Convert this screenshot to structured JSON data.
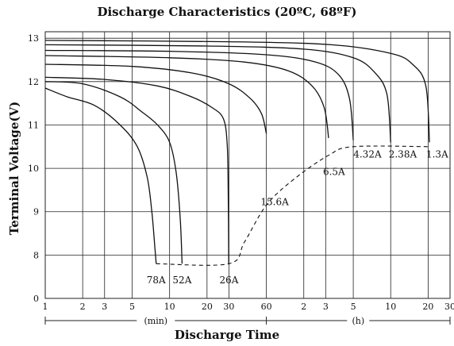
{
  "chart_data": {
    "type": "line",
    "title": "Discharge Characteristics (20ºC, 68ºF)",
    "xlabel": "Discharge Time",
    "ylabel": "Terminal Voltage(V)",
    "x_scale": "log",
    "x_unit_min": "(min)",
    "x_unit_h": "(h)",
    "x_ticks": [
      {
        "label": "1",
        "minutes": 1
      },
      {
        "label": "2",
        "minutes": 2
      },
      {
        "label": "3",
        "minutes": 3
      },
      {
        "label": "5",
        "minutes": 5
      },
      {
        "label": "10",
        "minutes": 10
      },
      {
        "label": "20",
        "minutes": 20
      },
      {
        "label": "30",
        "minutes": 30
      },
      {
        "label": "60",
        "minutes": 60
      },
      {
        "label": "2",
        "minutes": 120
      },
      {
        "label": "3",
        "minutes": 180
      },
      {
        "label": "5",
        "minutes": 300
      },
      {
        "label": "10",
        "minutes": 600
      },
      {
        "label": "20",
        "minutes": 1200
      },
      {
        "label": "30",
        "minutes": 1800
      }
    ],
    "y_ticks": [
      {
        "label": "0",
        "volts": 7
      },
      {
        "label": "8",
        "volts": 8
      },
      {
        "label": "9",
        "volts": 9
      },
      {
        "label": "10",
        "volts": 10
      },
      {
        "label": "11",
        "volts": 11
      },
      {
        "label": "12",
        "volts": 12
      },
      {
        "label": "13",
        "volts": 13
      }
    ],
    "grid": true,
    "series": [
      {
        "name": "78A",
        "points": [
          [
            1,
            11.85
          ],
          [
            1.5,
            11.65
          ],
          [
            2.5,
            11.45
          ],
          [
            4,
            11.0
          ],
          [
            5.5,
            10.5
          ],
          [
            6.6,
            9.8
          ],
          [
            7.2,
            9.0
          ],
          [
            7.6,
            8.2
          ],
          [
            7.8,
            7.8
          ]
        ]
      },
      {
        "name": "52A",
        "points": [
          [
            1,
            12.0
          ],
          [
            2,
            11.95
          ],
          [
            4,
            11.65
          ],
          [
            6,
            11.3
          ],
          [
            8,
            11.0
          ],
          [
            10,
            10.6
          ],
          [
            11.3,
            9.9
          ],
          [
            12.2,
            8.8
          ],
          [
            12.6,
            7.8
          ]
        ]
      },
      {
        "name": "26A",
        "points": [
          [
            1,
            12.1
          ],
          [
            3,
            12.05
          ],
          [
            8,
            11.9
          ],
          [
            15,
            11.65
          ],
          [
            22,
            11.4
          ],
          [
            27,
            11.15
          ],
          [
            29,
            10.6
          ],
          [
            29.6,
            9.5
          ],
          [
            29.9,
            7.8
          ]
        ]
      },
      {
        "name": "15.6A",
        "points": [
          [
            1,
            12.4
          ],
          [
            5,
            12.35
          ],
          [
            15,
            12.2
          ],
          [
            30,
            11.95
          ],
          [
            45,
            11.6
          ],
          [
            55,
            11.25
          ],
          [
            60,
            10.8
          ]
        ]
      },
      {
        "name": "6.5A",
        "points": [
          [
            1,
            12.6
          ],
          [
            10,
            12.55
          ],
          [
            40,
            12.45
          ],
          [
            90,
            12.25
          ],
          [
            140,
            11.9
          ],
          [
            175,
            11.4
          ],
          [
            190,
            10.7
          ]
        ]
      },
      {
        "name": "4.32A",
        "points": [
          [
            1,
            12.72
          ],
          [
            10,
            12.7
          ],
          [
            60,
            12.62
          ],
          [
            150,
            12.45
          ],
          [
            230,
            12.15
          ],
          [
            280,
            11.6
          ],
          [
            300,
            10.65
          ]
        ]
      },
      {
        "name": "2.38A",
        "points": [
          [
            1,
            12.85
          ],
          [
            20,
            12.82
          ],
          [
            120,
            12.75
          ],
          [
            300,
            12.55
          ],
          [
            450,
            12.2
          ],
          [
            560,
            11.7
          ],
          [
            600,
            10.6
          ]
        ]
      },
      {
        "name": "1.3A",
        "points": [
          [
            1,
            12.95
          ],
          [
            30,
            12.92
          ],
          [
            200,
            12.85
          ],
          [
            600,
            12.65
          ],
          [
            900,
            12.4
          ],
          [
            1150,
            11.9
          ],
          [
            1230,
            10.6
          ]
        ]
      }
    ],
    "end_voltage_line": [
      [
        7.8,
        7.8
      ],
      [
        30,
        7.8
      ],
      [
        40,
        8.3
      ],
      [
        60,
        9.15
      ],
      [
        100,
        9.75
      ],
      [
        190,
        10.3
      ],
      [
        300,
        10.5
      ],
      [
        1230,
        10.5
      ]
    ],
    "annotations": [
      {
        "text": "78A",
        "minutes": 7.8,
        "volts": 7.35
      },
      {
        "text": "52A",
        "minutes": 12.6,
        "volts": 7.35
      },
      {
        "text": "26A",
        "minutes": 30,
        "volts": 7.35
      },
      {
        "text": "15.6A",
        "minutes": 70,
        "volts": 9.15
      },
      {
        "text": "6.5A",
        "minutes": 210,
        "volts": 9.85
      },
      {
        "text": "4.32A",
        "minutes": 390,
        "volts": 10.25
      },
      {
        "text": "2.38A",
        "minutes": 750,
        "volts": 10.25
      },
      {
        "text": "1.3A",
        "minutes": 1420,
        "volts": 10.25
      }
    ]
  }
}
